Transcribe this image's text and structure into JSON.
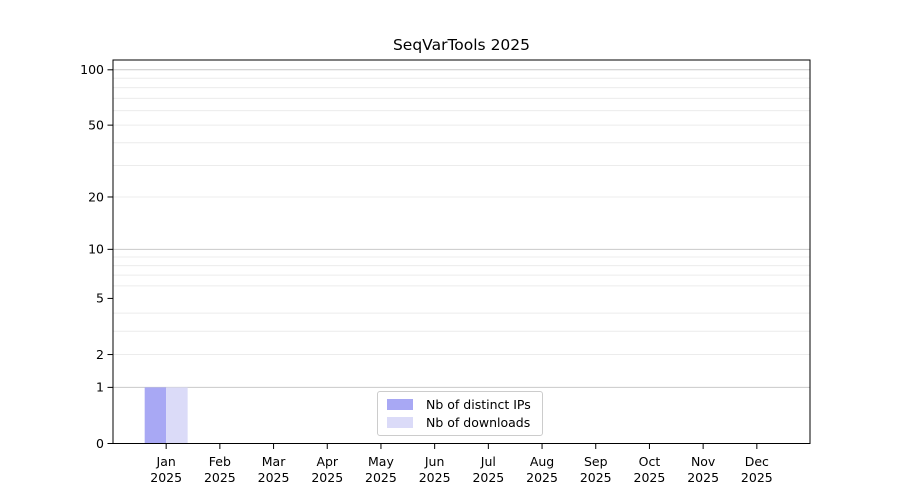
{
  "chart_data": {
    "type": "bar",
    "title": "SeqVarTools 2025",
    "categories": [
      "Jan",
      "Feb",
      "Mar",
      "Apr",
      "May",
      "Jun",
      "Jul",
      "Aug",
      "Sep",
      "Oct",
      "Nov",
      "Dec"
    ],
    "year_label": "2025",
    "series": [
      {
        "name": "Nb of distinct IPs",
        "color": "#a8a8f4",
        "values": [
          1,
          0,
          0,
          0,
          0,
          0,
          0,
          0,
          0,
          0,
          0,
          0
        ]
      },
      {
        "name": "Nb of downloads",
        "color": "#dbdbf8",
        "values": [
          1,
          0,
          0,
          0,
          0,
          0,
          0,
          0,
          0,
          0,
          0,
          0
        ]
      }
    ],
    "y_axis": {
      "scale": "log10(1+v)",
      "max": 113,
      "labeled_ticks": [
        0,
        1,
        2,
        5,
        10,
        20,
        50,
        100
      ],
      "tick_labels": [
        "0",
        "1",
        "2",
        "5",
        "10",
        "20",
        "50",
        "100"
      ],
      "major_gridlines": [
        1,
        10,
        100
      ],
      "minor_gridlines": [
        2,
        3,
        4,
        6,
        7,
        8,
        9,
        20,
        30,
        40,
        50,
        60,
        70,
        80,
        90
      ]
    },
    "xlabel": "",
    "ylabel": "",
    "grid": true,
    "legend": {
      "position": "lower center",
      "items": [
        "Nb of distinct IPs",
        "Nb of downloads"
      ]
    }
  },
  "colors": {
    "background": "#ffffff",
    "axis": "#000000",
    "text": "#000000",
    "major_grid": "#c9c9c9",
    "minor_grid": "#ececec",
    "legend_border": "#cccccc",
    "legend_background": "#ffffff"
  }
}
